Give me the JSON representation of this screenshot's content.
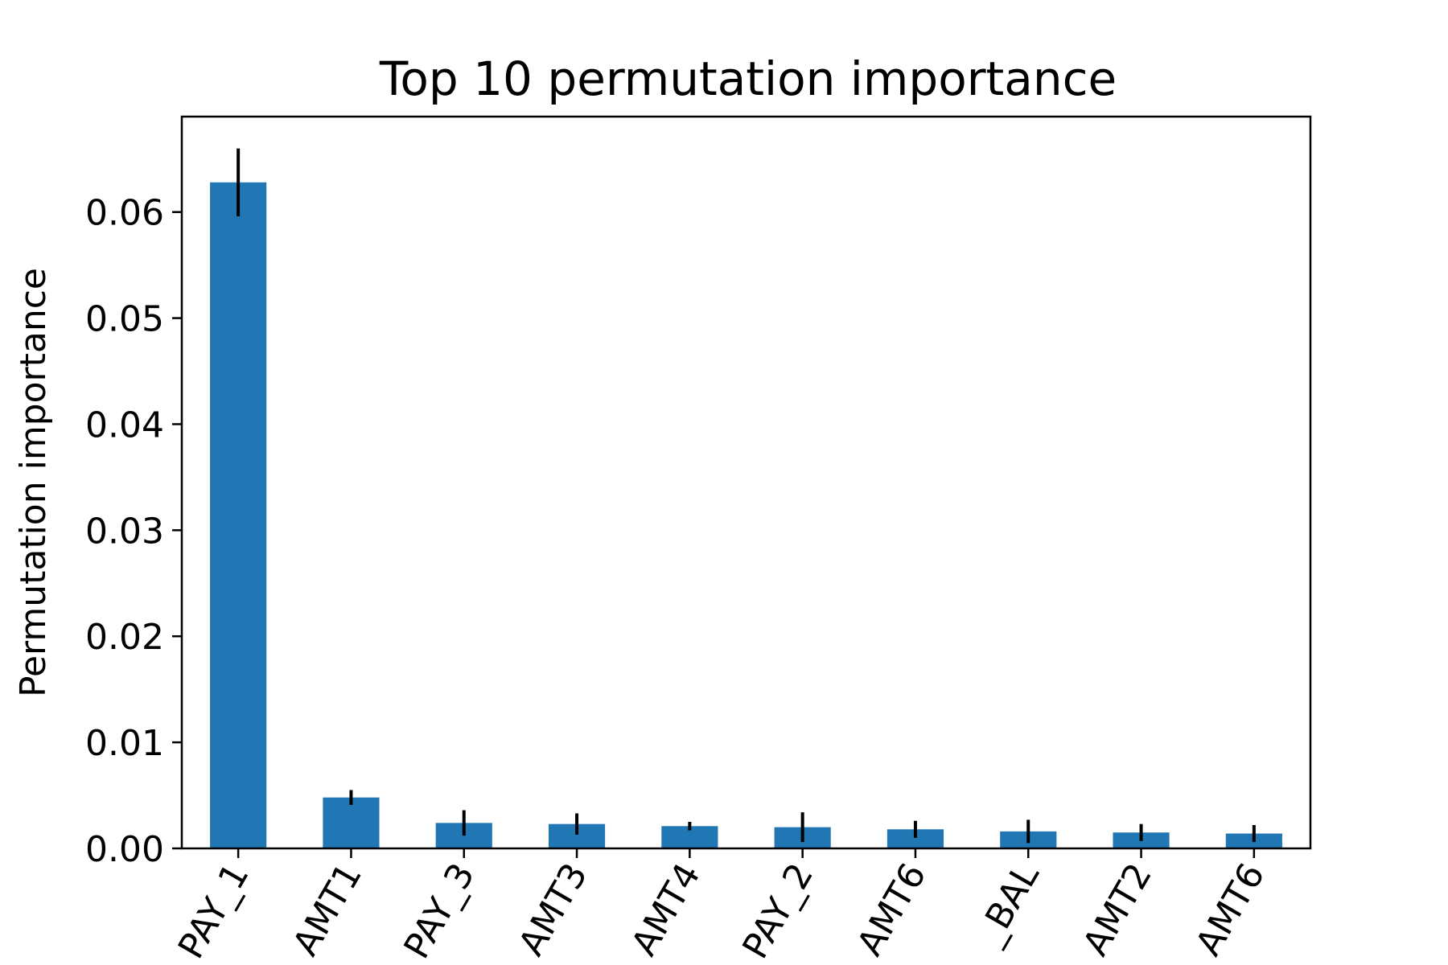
{
  "chart_data": {
    "type": "bar",
    "title": "Top 10 permutation importance",
    "xlabel": "",
    "ylabel": "Permutation importance",
    "categories": [
      "PAY_1",
      "AMT1",
      "PAY_3",
      "AMT3",
      "AMT4",
      "PAY_2",
      "AMT6",
      "_BAL",
      "AMT2",
      "AMT6"
    ],
    "values": [
      0.0628,
      0.0048,
      0.0024,
      0.0023,
      0.0021,
      0.002,
      0.0018,
      0.0016,
      0.0015,
      0.0014
    ],
    "errors": [
      0.0032,
      0.0007,
      0.0012,
      0.001,
      0.0004,
      0.0014,
      0.0008,
      0.0011,
      0.0008,
      0.0008
    ],
    "ylim": [
      0,
      0.069
    ],
    "yticks": [
      0.0,
      0.01,
      0.02,
      0.03,
      0.04,
      0.05,
      0.06
    ],
    "ytick_labels": [
      "0.00",
      "0.01",
      "0.02",
      "0.03",
      "0.04",
      "0.05",
      "0.06"
    ],
    "bar_color": "#2177b4",
    "error_color": "#000000",
    "grid": false,
    "legend": "none"
  }
}
